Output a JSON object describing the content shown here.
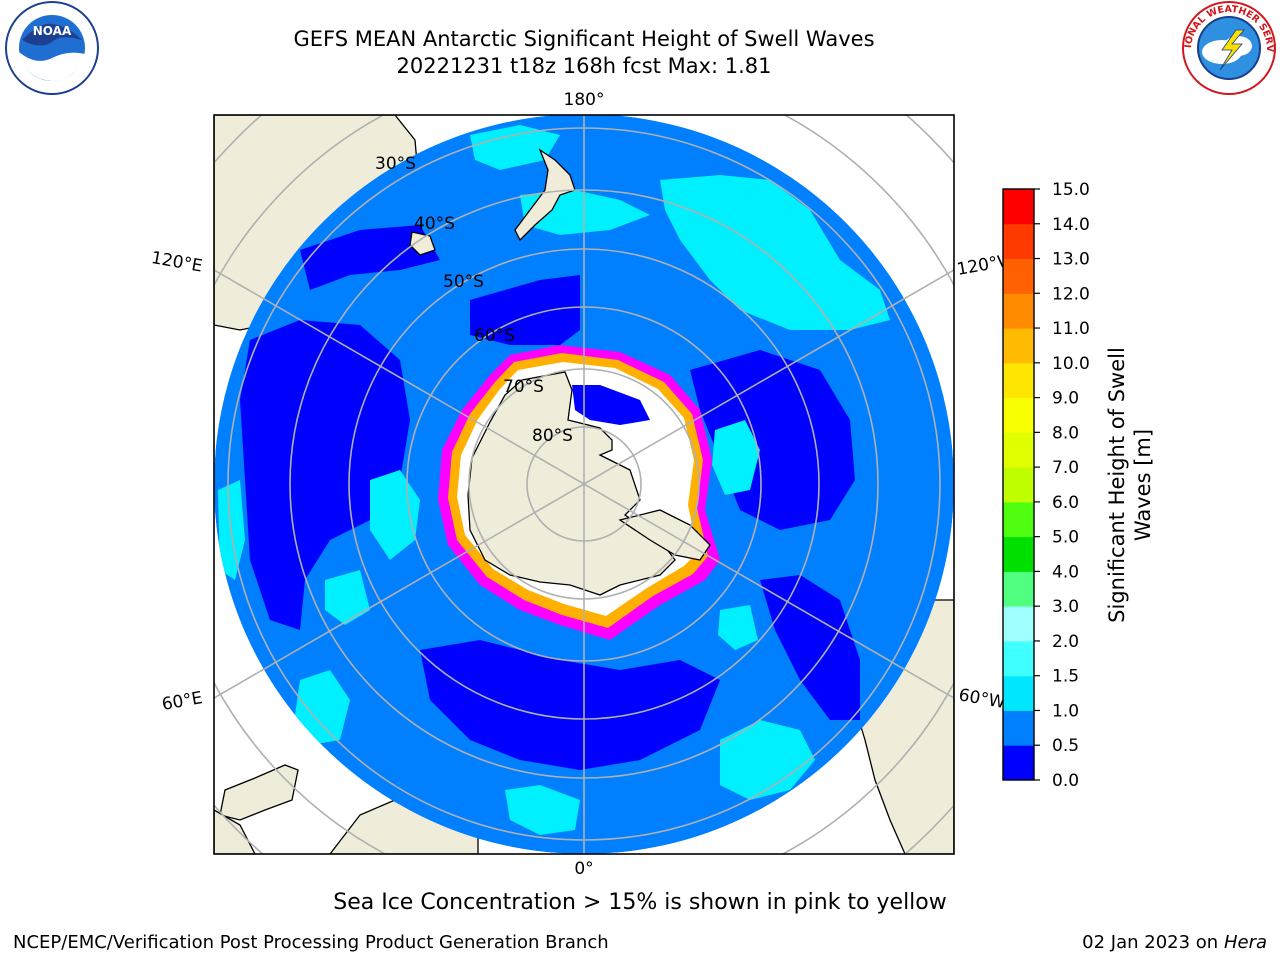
{
  "header": {
    "title_line1": "GEFS MEAN Antarctic Significant Height of Swell Waves",
    "title_line2": "20221231 t18z 168h fcst   Max: 1.81"
  },
  "map": {
    "projection": "south-polar-stereographic",
    "lon_labels": [
      "180°",
      "0°",
      "120°E",
      "120°W",
      "60°E",
      "60°W"
    ],
    "lat_labels": [
      "30°S",
      "40°S",
      "50°S",
      "60°S",
      "70°S",
      "80°S"
    ],
    "colors": {
      "land": "#efedd9",
      "ocean_low": "#0000ff",
      "ocean_mid": "#0080ff",
      "ocean_high": "#00f0ff",
      "ice_pink": "#ff00ff",
      "ice_orange": "#ffb000",
      "grid": "#b0b0b0"
    }
  },
  "colorbar": {
    "label_line1": "Significant Height of Swell",
    "label_line2": "Waves [m]",
    "ticks": [
      "0.0",
      "0.5",
      "1.0",
      "1.5",
      "2.0",
      "3.0",
      "4.0",
      "5.0",
      "6.0",
      "7.0",
      "8.0",
      "9.0",
      "10.0",
      "11.0",
      "12.0",
      "13.0",
      "14.0",
      "15.0"
    ],
    "colors": [
      "#0000ff",
      "#0080ff",
      "#00e6ff",
      "#40ffff",
      "#a0ffff",
      "#50ff80",
      "#00e000",
      "#50ff10",
      "#c0ff00",
      "#e0ff00",
      "#f8ff00",
      "#ffe600",
      "#ffbb00",
      "#ff8c00",
      "#ff6000",
      "#ff3a00",
      "#ff0000"
    ]
  },
  "caption": "Sea Ice Concentration > 15% is shown in pink to yellow",
  "footer": {
    "left": "NCEP/EMC/Verification Post Processing Product Generation Branch",
    "right_date": "02 Jan 2023 on ",
    "right_host": "Hera"
  },
  "logos": {
    "noaa_text": "NOAA",
    "nws_text": "NATIONAL WEATHER SERVICE"
  }
}
